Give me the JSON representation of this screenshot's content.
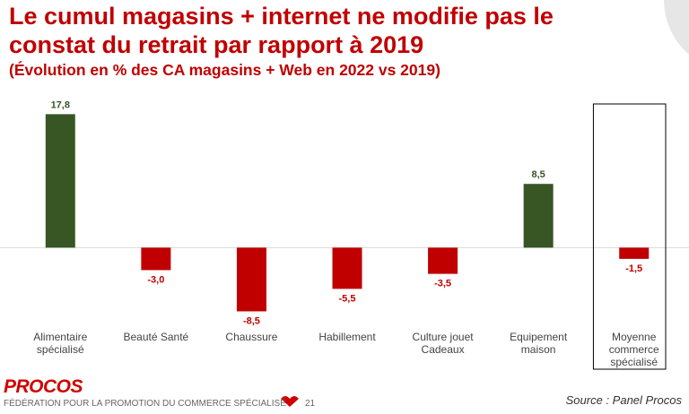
{
  "chart_data": {
    "type": "bar",
    "title": "Le cumul magasins + internet ne modifie pas le constat du retrait par rapport à 2019",
    "subtitle": "(Évolution en % des CA magasins + Web en 2022 vs 2019)",
    "categories": [
      "Alimentaire spécialisé",
      "Beauté Santé",
      "Chaussure",
      "Habillement",
      "Culture jouet Cadeaux",
      "Equipement maison",
      "Moyenne commerce spécialisé"
    ],
    "values": [
      17.8,
      -3.0,
      -8.5,
      -5.5,
      -3.5,
      8.5,
      -1.5
    ],
    "value_labels": [
      "17,8",
      "-3,0",
      "-8,5",
      "-5,5",
      "-3,5",
      "8,5",
      "-1,5"
    ],
    "color_positive": "#375623",
    "color_negative": "#c00000",
    "ylim": [
      -10,
      20
    ]
  },
  "footer": {
    "brand": "PROCOS",
    "tagline": "FÉDÉRATION POUR LA PROMOTION DU COMMERCE SPÉCIALISÉ",
    "page": "21",
    "source": "Source : Panel Procos"
  }
}
